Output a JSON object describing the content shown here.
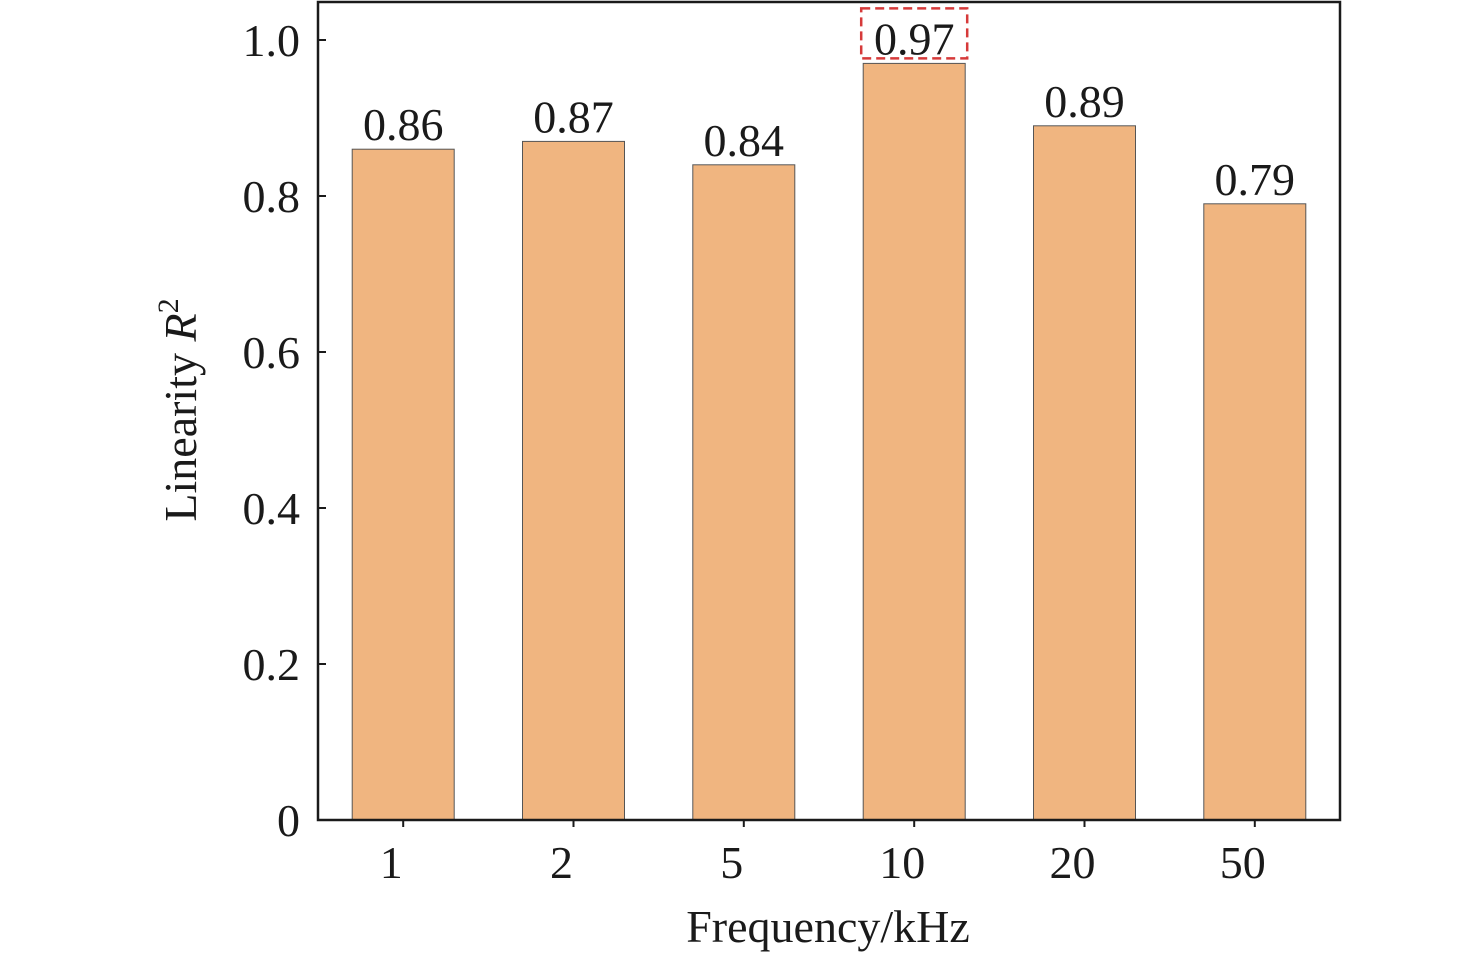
{
  "chart_data": {
    "type": "bar",
    "categories": [
      "1",
      "2",
      "5",
      "10",
      "20",
      "50"
    ],
    "values": [
      0.86,
      0.87,
      0.84,
      0.97,
      0.89,
      0.79
    ],
    "data_labels": [
      "0.86",
      "0.87",
      "0.84",
      "0.97",
      "0.89",
      "0.79"
    ],
    "highlighted_index": 3,
    "xlabel": "Frequency/kHz",
    "ylabel": {
      "prefix": "Linearity ",
      "variable": "R",
      "superscript": "2"
    },
    "ylim": [
      0,
      1.0
    ],
    "y_ticks": [
      0,
      0.2,
      0.4,
      0.6,
      0.8,
      1.0
    ],
    "y_tick_labels": [
      "0",
      "0.2",
      "0.4",
      "0.6",
      "0.8",
      "1.0"
    ],
    "grid": false,
    "colors": {
      "bar_fill": "#f0b580",
      "bar_stroke": "#555555",
      "axis": "#1a1a1a",
      "highlight_box": "#d63a3a"
    }
  }
}
